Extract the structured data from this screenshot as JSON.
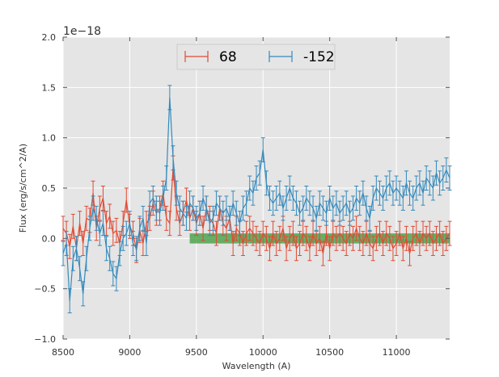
{
  "chart_data": {
    "type": "line",
    "title": "",
    "xlabel": "Wavelength (A)",
    "ylabel": "Flux (erg/s/cm^2/A)",
    "y_offset_text": "1e−18",
    "xlim": [
      8500,
      11400
    ],
    "ylim": [
      -1.0,
      2.0
    ],
    "x_ticks": [
      8500,
      9000,
      9500,
      10000,
      10500,
      11000
    ],
    "x_tick_labels": [
      "8500",
      "9000",
      "9500",
      "10000",
      "10500",
      "11000"
    ],
    "y_ticks": [
      -1.0,
      -0.5,
      0.0,
      0.5,
      1.0,
      1.5,
      2.0
    ],
    "y_tick_labels": [
      "−1.0",
      "−0.5",
      "0.0",
      "0.5",
      "1.0",
      "1.5",
      "2.0"
    ],
    "grid": true,
    "legend_position": "top-center",
    "band": {
      "x_start": 9450,
      "x_end": 11400,
      "y_low": -0.05,
      "y_high": 0.05,
      "color": "#3a9a3a"
    },
    "series": [
      {
        "name": "68",
        "color": "#e24a33",
        "error": 0.12,
        "x": [
          8500,
          8525,
          8550,
          8575,
          8600,
          8625,
          8650,
          8675,
          8700,
          8725,
          8750,
          8775,
          8800,
          8825,
          8850,
          8875,
          8900,
          8925,
          8950,
          8975,
          9000,
          9025,
          9050,
          9075,
          9100,
          9125,
          9150,
          9175,
          9200,
          9225,
          9250,
          9275,
          9300,
          9325,
          9350,
          9375,
          9400,
          9425,
          9450,
          9475,
          9500,
          9525,
          9550,
          9575,
          9600,
          9625,
          9650,
          9675,
          9700,
          9725,
          9750,
          9775,
          9800,
          9825,
          9850,
          9875,
          9900,
          9925,
          9950,
          9975,
          10000,
          10025,
          10050,
          10075,
          10100,
          10125,
          10150,
          10175,
          10200,
          10225,
          10250,
          10275,
          10300,
          10325,
          10350,
          10375,
          10400,
          10425,
          10450,
          10475,
          10500,
          10525,
          10550,
          10575,
          10600,
          10625,
          10650,
          10675,
          10700,
          10725,
          10750,
          10775,
          10800,
          10825,
          10850,
          10875,
          10900,
          10925,
          10950,
          10975,
          11000,
          11025,
          11050,
          11075,
          11100,
          11125,
          11150,
          11175,
          11200,
          11225,
          11250,
          11275,
          11300,
          11325,
          11350,
          11375,
          11400
        ],
        "y": [
          0.1,
          0.05,
          -0.08,
          0.12,
          -0.1,
          0.15,
          -0.05,
          0.2,
          0.18,
          0.45,
          0.1,
          0.3,
          0.4,
          0.15,
          0.22,
          0.05,
          0.08,
          -0.05,
          0.15,
          0.38,
          0.12,
          0.05,
          -0.12,
          0.08,
          -0.05,
          0.15,
          0.2,
          0.35,
          0.25,
          0.3,
          0.45,
          0.2,
          0.15,
          0.7,
          0.3,
          0.15,
          0.25,
          0.38,
          0.2,
          0.3,
          0.15,
          0.25,
          0.1,
          0.3,
          0.2,
          0.15,
          0.05,
          0.3,
          0.15,
          0.1,
          0.2,
          -0.05,
          0.1,
          0.05,
          -0.05,
          0.05,
          0.1,
          0.05,
          0.0,
          -0.05,
          0.05,
          0.0,
          -0.1,
          0.05,
          -0.05,
          0.0,
          0.1,
          -0.1,
          0.0,
          0.05,
          -0.1,
          -0.05,
          0.05,
          0.0,
          -0.1,
          0.05,
          -0.05,
          0.0,
          -0.15,
          0.05,
          -0.1,
          0.05,
          0.0,
          0.05,
          0.0,
          -0.05,
          0.05,
          0.0,
          0.1,
          0.0,
          -0.05,
          0.05,
          -0.05,
          -0.1,
          0.0,
          0.05,
          -0.05,
          0.05,
          0.0,
          -0.1,
          -0.05,
          0.05,
          -0.1,
          0.0,
          -0.15,
          0.0,
          0.05,
          -0.05,
          0.05,
          0.0,
          0.05,
          -0.05,
          0.0,
          0.05,
          -0.05,
          0.0,
          0.05
        ]
      },
      {
        "name": "-152",
        "color": "#348abd",
        "error": 0.12,
        "x": [
          8500,
          8525,
          8550,
          8575,
          8600,
          8625,
          8650,
          8675,
          8700,
          8725,
          8750,
          8775,
          8800,
          8825,
          8850,
          8875,
          8900,
          8925,
          8950,
          8975,
          9000,
          9025,
          9050,
          9075,
          9100,
          9125,
          9150,
          9175,
          9200,
          9225,
          9250,
          9275,
          9300,
          9325,
          9350,
          9375,
          9400,
          9425,
          9450,
          9475,
          9500,
          9525,
          9550,
          9575,
          9600,
          9625,
          9650,
          9675,
          9700,
          9725,
          9750,
          9775,
          9800,
          9825,
          9850,
          9875,
          9900,
          9925,
          9950,
          9975,
          10000,
          10025,
          10050,
          10075,
          10100,
          10125,
          10150,
          10175,
          10200,
          10225,
          10250,
          10275,
          10300,
          10325,
          10350,
          10375,
          10400,
          10425,
          10450,
          10475,
          10500,
          10525,
          10550,
          10575,
          10600,
          10625,
          10650,
          10675,
          10700,
          10725,
          10750,
          10775,
          10800,
          10825,
          10850,
          10875,
          10900,
          10925,
          10950,
          10975,
          11000,
          11025,
          11050,
          11075,
          11100,
          11125,
          11150,
          11175,
          11200,
          11225,
          11250,
          11275,
          11300,
          11325,
          11350,
          11375,
          11400
        ],
        "y": [
          -0.15,
          -0.05,
          -0.62,
          -0.2,
          -0.1,
          -0.3,
          -0.55,
          -0.2,
          0.1,
          0.3,
          0.2,
          0.05,
          0.15,
          -0.1,
          -0.2,
          -0.35,
          -0.4,
          -0.15,
          0.0,
          0.05,
          0.15,
          -0.05,
          -0.1,
          0.1,
          0.2,
          -0.05,
          0.35,
          0.4,
          0.3,
          0.25,
          0.4,
          0.6,
          1.4,
          0.8,
          0.45,
          0.3,
          0.25,
          0.2,
          0.35,
          0.3,
          0.2,
          0.25,
          0.4,
          0.3,
          0.15,
          0.2,
          0.35,
          0.3,
          0.25,
          0.3,
          0.2,
          0.35,
          0.25,
          0.15,
          0.3,
          0.35,
          0.5,
          0.45,
          0.6,
          0.65,
          0.88,
          0.55,
          0.4,
          0.35,
          0.4,
          0.45,
          0.3,
          0.4,
          0.5,
          0.4,
          0.35,
          0.25,
          0.3,
          0.4,
          0.35,
          0.3,
          0.2,
          0.35,
          0.3,
          0.25,
          0.4,
          0.3,
          0.35,
          0.25,
          0.3,
          0.35,
          0.25,
          0.3,
          0.4,
          0.35,
          0.45,
          0.3,
          0.2,
          0.4,
          0.5,
          0.45,
          0.4,
          0.5,
          0.55,
          0.45,
          0.5,
          0.45,
          0.4,
          0.55,
          0.45,
          0.4,
          0.5,
          0.55,
          0.45,
          0.6,
          0.55,
          0.5,
          0.65,
          0.55,
          0.6,
          0.68,
          0.6
        ]
      }
    ]
  }
}
